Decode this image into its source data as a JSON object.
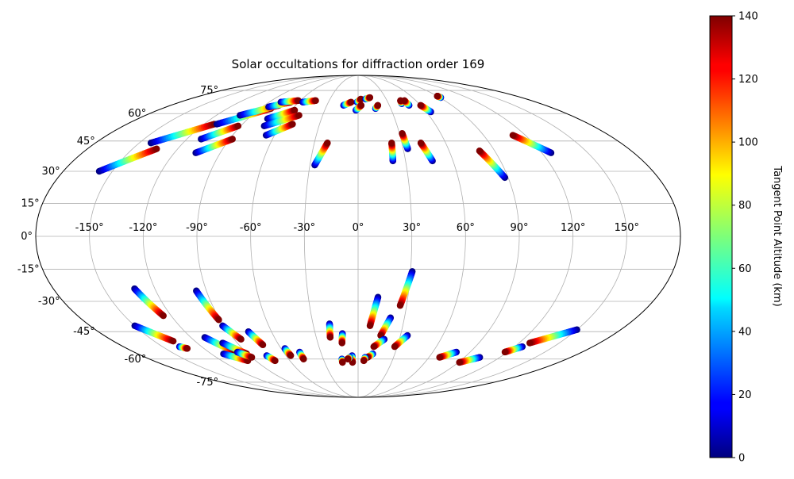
{
  "chart_data": {
    "type": "scatter",
    "projection": "mollweide",
    "title": "Solar occultations for diffraction order 169",
    "lon_ticks": [
      "-150°",
      "-120°",
      "-90°",
      "-60°",
      "-30°",
      "0°",
      "30°",
      "60°",
      "90°",
      "120°",
      "150°"
    ],
    "lat_ticks": [
      "-75°",
      "-60°",
      "-45°",
      "-30°",
      "-15°",
      "0°",
      "15°",
      "30°",
      "45°",
      "60°",
      "75°"
    ],
    "grid": true,
    "colorbar": {
      "label": "Tangent Point Altitude (km)",
      "colormap": "jet",
      "range": [
        0,
        140
      ],
      "ticks": [
        "0",
        "20",
        "40",
        "60",
        "80",
        "100",
        "120",
        "140"
      ]
    },
    "tracks": [
      {
        "start": [
          -158,
          30
        ],
        "end": [
          -134,
          41
        ],
        "dir": "up"
      },
      {
        "start": [
          -142,
          44
        ],
        "end": [
          -112,
          54
        ],
        "dir": "up"
      },
      {
        "start": [
          -110,
          54
        ],
        "end": [
          -80,
          63
        ],
        "dir": "up"
      },
      {
        "start": [
          -100,
          59
        ],
        "end": [
          -76,
          65
        ],
        "dir": "up"
      },
      {
        "start": [
          -84,
          64
        ],
        "end": [
          -68,
          67
        ],
        "dir": "up"
      },
      {
        "start": [
          -78,
          67
        ],
        "end": [
          -62,
          68
        ],
        "dir": "up"
      },
      {
        "start": [
          -110,
          46
        ],
        "end": [
          -92,
          53
        ],
        "dir": "up"
      },
      {
        "start": [
          -106,
          39
        ],
        "end": [
          -88,
          46
        ],
        "dir": "up"
      },
      {
        "start": [
          -74,
          57
        ],
        "end": [
          -57,
          62
        ],
        "dir": "up"
      },
      {
        "start": [
          -72,
          53
        ],
        "end": [
          -50,
          59
        ],
        "dir": "up"
      },
      {
        "start": [
          -66,
          48
        ],
        "end": [
          -51,
          54
        ],
        "dir": "up"
      },
      {
        "start": [
          -56,
          67
        ],
        "end": [
          -44,
          68
        ],
        "dir": "up"
      },
      {
        "start": [
          -27,
          33
        ],
        "end": [
          -21,
          44
        ],
        "dir": "up"
      },
      {
        "start": [
          -14,
          65
        ],
        "end": [
          -7,
          67
        ],
        "dir": "up"
      },
      {
        "start": [
          -1,
          67
        ],
        "end": [
          3,
          69
        ],
        "dir": "up"
      },
      {
        "start": [
          -2,
          62
        ],
        "end": [
          3,
          65
        ],
        "dir": "up"
      },
      {
        "start": [
          8,
          69
        ],
        "end": [
          13,
          70
        ],
        "dir": "up"
      },
      {
        "start": [
          16,
          63
        ],
        "end": [
          19,
          65
        ],
        "dir": "up"
      },
      {
        "start": [
          22,
          35
        ],
        "end": [
          23,
          44
        ],
        "dir": "up"
      },
      {
        "start": [
          33,
          41
        ],
        "end": [
          32,
          49
        ],
        "dir": "up"
      },
      {
        "start": [
          43,
          66
        ],
        "end": [
          44,
          68
        ],
        "dir": "up"
      },
      {
        "start": [
          49,
          65
        ],
        "end": [
          48,
          68
        ],
        "dir": "up"
      },
      {
        "start": [
          47,
          35
        ],
        "end": [
          43,
          44
        ],
        "dir": "up"
      },
      {
        "start": [
          64,
          61
        ],
        "end": [
          60,
          65
        ],
        "dir": "up"
      },
      {
        "start": [
          88,
          27
        ],
        "end": [
          80,
          40
        ],
        "dir": "up"
      },
      {
        "start": [
          126,
          39
        ],
        "end": [
          111,
          48
        ],
        "dir": "up"
      },
      {
        "start": [
          91,
          70
        ],
        "end": [
          90,
          71
        ],
        "dir": "up"
      },
      {
        "start": [
          -150,
          -42
        ],
        "end": [
          -136,
          -50
        ],
        "dir": "down"
      },
      {
        "start": [
          -137,
          -53
        ],
        "end": [
          -133,
          -54
        ],
        "dir": "down"
      },
      {
        "start": [
          -132,
          -24
        ],
        "end": [
          -125,
          -37
        ],
        "dir": "down"
      },
      {
        "start": [
          -110,
          -48
        ],
        "end": [
          -99,
          -56
        ],
        "dir": "down"
      },
      {
        "start": [
          -110,
          -57
        ],
        "end": [
          -97,
          -61
        ],
        "dir": "down"
      },
      {
        "start": [
          -101,
          -51
        ],
        "end": [
          -91,
          -57
        ],
        "dir": "down"
      },
      {
        "start": [
          -97,
          -56
        ],
        "end": [
          -90,
          -59
        ],
        "dir": "down"
      },
      {
        "start": [
          -96,
          -25
        ],
        "end": [
          -91,
          -39
        ],
        "dir": "down"
      },
      {
        "start": [
          -91,
          -42
        ],
        "end": [
          -85,
          -49
        ],
        "dir": "down"
      },
      {
        "start": [
          -76,
          -45
        ],
        "end": [
          -72,
          -52
        ],
        "dir": "down"
      },
      {
        "start": [
          -76,
          -58
        ],
        "end": [
          -73,
          -61
        ],
        "dir": "down"
      },
      {
        "start": [
          -57,
          -54
        ],
        "end": [
          -56,
          -58
        ],
        "dir": "down"
      },
      {
        "start": [
          -47,
          -56
        ],
        "end": [
          -47,
          -60
        ],
        "dir": "down"
      },
      {
        "start": [
          -19,
          -41
        ],
        "end": [
          -20,
          -48
        ],
        "dir": "down"
      },
      {
        "start": [
          -11,
          -46
        ],
        "end": [
          -12,
          -51
        ],
        "dir": "down"
      },
      {
        "start": [
          -14,
          -60
        ],
        "end": [
          -14,
          -62
        ],
        "dir": "down"
      },
      {
        "start": [
          -5,
          -58
        ],
        "end": [
          -5,
          -62
        ],
        "dir": "down"
      },
      {
        "start": [
          -7,
          -59
        ],
        "end": [
          -9,
          -60
        ],
        "dir": "down"
      },
      {
        "start": [
          12,
          -28
        ],
        "end": [
          8,
          -42
        ],
        "dir": "down"
      },
      {
        "start": [
          21,
          -38
        ],
        "end": [
          16,
          -47
        ],
        "dir": "down"
      },
      {
        "start": [
          19,
          -49
        ],
        "end": [
          12,
          -53
        ],
        "dir": "down"
      },
      {
        "start": [
          12,
          -57
        ],
        "end": [
          8,
          -59
        ],
        "dir": "down"
      },
      {
        "start": [
          6,
          -59
        ],
        "end": [
          5,
          -61
        ],
        "dir": "down"
      },
      {
        "start": [
          31,
          -16
        ],
        "end": [
          26,
          -32
        ],
        "dir": "down"
      },
      {
        "start": [
          35,
          -47
        ],
        "end": [
          28,
          -53
        ],
        "dir": "down"
      },
      {
        "start": [
          79,
          -56
        ],
        "end": [
          69,
          -59
        ],
        "dir": "down"
      },
      {
        "start": [
          103,
          -59
        ],
        "end": [
          91,
          -62
        ],
        "dir": "down"
      },
      {
        "start": [
          150,
          -44
        ],
        "end": [
          128,
          -51
        ],
        "dir": "down"
      },
      {
        "start": [
          126,
          -53
        ],
        "end": [
          118,
          -56
        ],
        "dir": "down"
      }
    ]
  }
}
